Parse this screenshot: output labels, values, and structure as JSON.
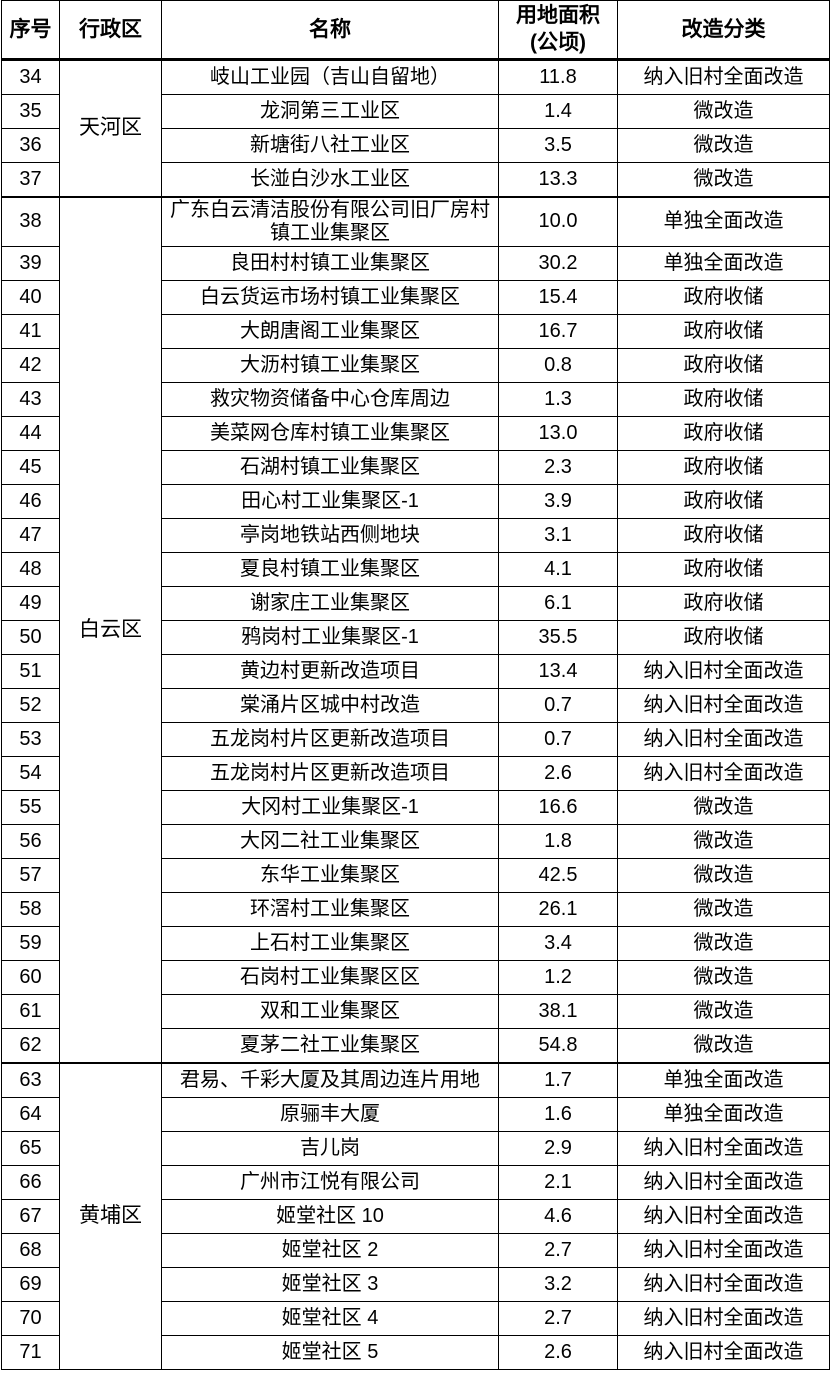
{
  "table": {
    "columns": [
      {
        "key": "seq",
        "label": "序号"
      },
      {
        "key": "district",
        "label": "行政区"
      },
      {
        "key": "name",
        "label": "名称"
      },
      {
        "key": "area",
        "label": "用地面积\n(公顷)"
      },
      {
        "key": "category",
        "label": "改造分类"
      }
    ],
    "groups": [
      {
        "district": "天河区",
        "rows": [
          {
            "seq": "34",
            "name": "岐山工业园（吉山自留地）",
            "area": "11.8",
            "category": "纳入旧村全面改造"
          },
          {
            "seq": "35",
            "name": "龙洞第三工业区",
            "area": "1.4",
            "category": "微改造"
          },
          {
            "seq": "36",
            "name": "新塘街八社工业区",
            "area": "3.5",
            "category": "微改造"
          },
          {
            "seq": "37",
            "name": "长湴白沙水工业区",
            "area": "13.3",
            "category": "微改造"
          }
        ]
      },
      {
        "district": "白云区",
        "rows": [
          {
            "seq": "38",
            "name": "广东白云清洁股份有限公司旧厂房村镇工业集聚区",
            "area": "10.0",
            "category": "单独全面改造"
          },
          {
            "seq": "39",
            "name": "良田村村镇工业集聚区",
            "area": "30.2",
            "category": "单独全面改造"
          },
          {
            "seq": "40",
            "name": "白云货运市场村镇工业集聚区",
            "area": "15.4",
            "category": "政府收储"
          },
          {
            "seq": "41",
            "name": "大朗唐阁工业集聚区",
            "area": "16.7",
            "category": "政府收储"
          },
          {
            "seq": "42",
            "name": "大沥村镇工业集聚区",
            "area": "0.8",
            "category": "政府收储"
          },
          {
            "seq": "43",
            "name": "救灾物资储备中心仓库周边",
            "area": "1.3",
            "category": "政府收储"
          },
          {
            "seq": "44",
            "name": "美菜网仓库村镇工业集聚区",
            "area": "13.0",
            "category": "政府收储"
          },
          {
            "seq": "45",
            "name": "石湖村镇工业集聚区",
            "area": "2.3",
            "category": "政府收储"
          },
          {
            "seq": "46",
            "name": "田心村工业集聚区-1",
            "area": "3.9",
            "category": "政府收储"
          },
          {
            "seq": "47",
            "name": "亭岗地铁站西侧地块",
            "area": "3.1",
            "category": "政府收储"
          },
          {
            "seq": "48",
            "name": "夏良村镇工业集聚区",
            "area": "4.1",
            "category": "政府收储"
          },
          {
            "seq": "49",
            "name": "谢家庄工业集聚区",
            "area": "6.1",
            "category": "政府收储"
          },
          {
            "seq": "50",
            "name": "鸦岗村工业集聚区-1",
            "area": "35.5",
            "category": "政府收储"
          },
          {
            "seq": "51",
            "name": "黄边村更新改造项目",
            "area": "13.4",
            "category": "纳入旧村全面改造"
          },
          {
            "seq": "52",
            "name": "棠涌片区城中村改造",
            "area": "0.7",
            "category": "纳入旧村全面改造"
          },
          {
            "seq": "53",
            "name": "五龙岗村片区更新改造项目",
            "area": "0.7",
            "category": "纳入旧村全面改造"
          },
          {
            "seq": "54",
            "name": "五龙岗村片区更新改造项目",
            "area": "2.6",
            "category": "纳入旧村全面改造"
          },
          {
            "seq": "55",
            "name": "大冈村工业集聚区-1",
            "area": "16.6",
            "category": "微改造"
          },
          {
            "seq": "56",
            "name": "大冈二社工业集聚区",
            "area": "1.8",
            "category": "微改造"
          },
          {
            "seq": "57",
            "name": "东华工业集聚区",
            "area": "42.5",
            "category": "微改造"
          },
          {
            "seq": "58",
            "name": "环滘村工业集聚区",
            "area": "26.1",
            "category": "微改造"
          },
          {
            "seq": "59",
            "name": "上石村工业集聚区",
            "area": "3.4",
            "category": "微改造"
          },
          {
            "seq": "60",
            "name": "石岗村工业集聚区区",
            "area": "1.2",
            "category": "微改造"
          },
          {
            "seq": "61",
            "name": "双和工业集聚区",
            "area": "38.1",
            "category": "微改造"
          },
          {
            "seq": "62",
            "name": "夏茅二社工业集聚区",
            "area": "54.8",
            "category": "微改造"
          }
        ]
      },
      {
        "district": "黄埔区",
        "rows": [
          {
            "seq": "63",
            "name": "君易、千彩大厦及其周边连片用地",
            "area": "1.7",
            "category": "单独全面改造"
          },
          {
            "seq": "64",
            "name": "原骊丰大厦",
            "area": "1.6",
            "category": "单独全面改造"
          },
          {
            "seq": "65",
            "name": "吉儿岗",
            "area": "2.9",
            "category": "纳入旧村全面改造"
          },
          {
            "seq": "66",
            "name": "广州市江悦有限公司",
            "area": "2.1",
            "category": "纳入旧村全面改造"
          },
          {
            "seq": "67",
            "name": "姬堂社区 10",
            "area": "4.6",
            "category": "纳入旧村全面改造"
          },
          {
            "seq": "68",
            "name": "姬堂社区 2",
            "area": "2.7",
            "category": "纳入旧村全面改造"
          },
          {
            "seq": "69",
            "name": "姬堂社区 3",
            "area": "3.2",
            "category": "纳入旧村全面改造"
          },
          {
            "seq": "70",
            "name": "姬堂社区 4",
            "area": "2.7",
            "category": "纳入旧村全面改造"
          },
          {
            "seq": "71",
            "name": "姬堂社区 5",
            "area": "2.6",
            "category": "纳入旧村全面改造"
          }
        ]
      }
    ]
  },
  "colors": {
    "border": "#000000",
    "text": "#000000",
    "background": "#ffffff"
  }
}
